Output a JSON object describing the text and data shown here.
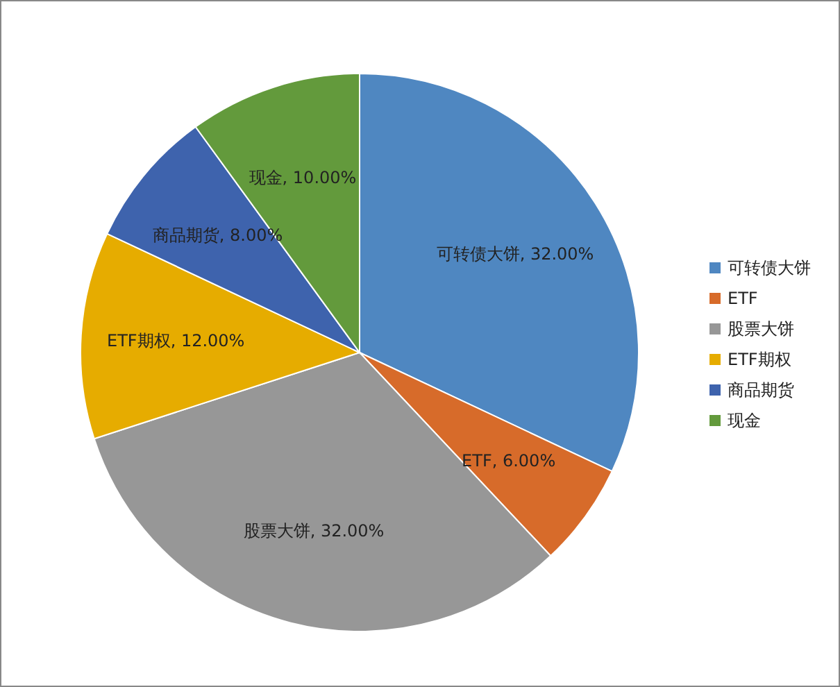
{
  "chart_data": {
    "type": "pie",
    "categories": [
      "可转债大饼",
      "ETF",
      "股票大饼",
      "ETF期权",
      "商品期货",
      "现金"
    ],
    "values": [
      32,
      6,
      32,
      12,
      8,
      10
    ],
    "value_labels": [
      "可转债大饼, 32.00%",
      "ETF, 6.00%",
      "股票大饼, 32.00%",
      "ETF期权, 12.00%",
      "商品期货, 8.00%",
      "现金, 10.00%"
    ],
    "colors": [
      "#4f87c1",
      "#d76b2a",
      "#979797",
      "#e6ac00",
      "#3e63ad",
      "#639a3c"
    ],
    "legend": "right"
  }
}
